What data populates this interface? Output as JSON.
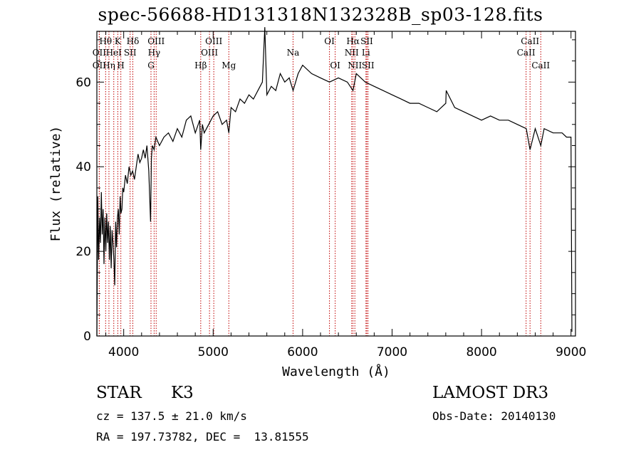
{
  "chart_data": {
    "type": "line",
    "title": "spec-56688-HD131318N132328B_sp03-128.fits",
    "xlabel": "Wavelength (Å)",
    "ylabel": "Flux (relative)",
    "xlim": [
      3700,
      9050
    ],
    "ylim": [
      0,
      72
    ],
    "xticks": [
      4000,
      5000,
      6000,
      7000,
      8000,
      9000
    ],
    "yticks": [
      0,
      20,
      40,
      60
    ],
    "series": [
      {
        "name": "spectrum",
        "x": [
          3700,
          3710,
          3720,
          3730,
          3740,
          3750,
          3760,
          3770,
          3780,
          3790,
          3800,
          3810,
          3820,
          3830,
          3840,
          3850,
          3860,
          3870,
          3880,
          3890,
          3900,
          3910,
          3920,
          3930,
          3940,
          3950,
          3960,
          3970,
          3980,
          3990,
          4000,
          4020,
          4040,
          4060,
          4080,
          4100,
          4120,
          4140,
          4160,
          4180,
          4200,
          4220,
          4240,
          4260,
          4280,
          4300,
          4310,
          4320,
          4340,
          4360,
          4380,
          4400,
          4450,
          4500,
          4550,
          4600,
          4650,
          4700,
          4750,
          4800,
          4850,
          4861,
          4880,
          4900,
          4950,
          5000,
          5050,
          5100,
          5150,
          5175,
          5200,
          5250,
          5300,
          5350,
          5400,
          5450,
          5500,
          5550,
          5577,
          5600,
          5650,
          5700,
          5750,
          5800,
          5850,
          5893,
          5950,
          6000,
          6100,
          6200,
          6300,
          6400,
          6500,
          6563,
          6600,
          6700,
          6800,
          6900,
          7000,
          7100,
          7200,
          7300,
          7400,
          7500,
          7600,
          7605,
          7700,
          7800,
          7900,
          8000,
          8100,
          8200,
          8300,
          8400,
          8500,
          8542,
          8600,
          8662,
          8700,
          8800,
          8900,
          8950,
          9000,
          9010
        ],
        "y": [
          0,
          33,
          18,
          28,
          22,
          34,
          24,
          30,
          17,
          28,
          20,
          29,
          22,
          27,
          18,
          26,
          16,
          25,
          22,
          18,
          12,
          27,
          21,
          28,
          30,
          24,
          33,
          29,
          30,
          35,
          34,
          38,
          36,
          40,
          38,
          39,
          37,
          40,
          43,
          41,
          42,
          44,
          42,
          45,
          39,
          27,
          42,
          45,
          44,
          47,
          46,
          45,
          47,
          48,
          46,
          49,
          47,
          51,
          52,
          48,
          51,
          44,
          50,
          48,
          50,
          52,
          53,
          50,
          51,
          48,
          54,
          53,
          56,
          55,
          57,
          56,
          58,
          60,
          73,
          57,
          59,
          58,
          62,
          60,
          61,
          58,
          62,
          64,
          62,
          61,
          60,
          61,
          60,
          58,
          62,
          60,
          59,
          58,
          57,
          56,
          55,
          55,
          54,
          53,
          55,
          58,
          54,
          53,
          52,
          51,
          52,
          51,
          51,
          50,
          49,
          44,
          49,
          45,
          49,
          48,
          48,
          47,
          47,
          1
        ],
        "color": "#000000"
      }
    ],
    "lines": [
      {
        "label": "OII",
        "wave": 3727,
        "row": 2
      },
      {
        "label": "OII",
        "wave": 3727,
        "row": 3
      },
      {
        "label": "Hθ",
        "wave": 3798,
        "row": 1
      },
      {
        "label": "Hη",
        "wave": 3835,
        "row": 3
      },
      {
        "label": "HeI",
        "wave": 3889,
        "row": 2
      },
      {
        "label": "K",
        "wave": 3934,
        "row": 1
      },
      {
        "label": "H",
        "wave": 3968,
        "row": 3
      },
      {
        "label": "SII",
        "wave": 4072,
        "row": 2
      },
      {
        "label": "Hδ",
        "wave": 4102,
        "row": 1
      },
      {
        "label": "OIII",
        "wave": 4363,
        "row": 1
      },
      {
        "label": "Hγ",
        "wave": 4340,
        "row": 2
      },
      {
        "label": "G",
        "wave": 4305,
        "row": 3
      },
      {
        "label": "Hβ",
        "wave": 4861,
        "row": 3
      },
      {
        "label": "OIII",
        "wave": 4959,
        "row": 2
      },
      {
        "label": "OIII",
        "wave": 5007,
        "row": 1
      },
      {
        "label": "Mg",
        "wave": 5175,
        "row": 3
      },
      {
        "label": "Na",
        "wave": 5893,
        "row": 2
      },
      {
        "label": "OI",
        "wave": 6300,
        "row": 1
      },
      {
        "label": "OI",
        "wave": 6364,
        "row": 3
      },
      {
        "label": "Hα",
        "wave": 6563,
        "row": 1
      },
      {
        "label": "NII",
        "wave": 6548,
        "row": 2
      },
      {
        "label": "NII",
        "wave": 6584,
        "row": 3
      },
      {
        "label": "SII",
        "wave": 6717,
        "row": 1
      },
      {
        "label": "Li",
        "wave": 6708,
        "row": 2
      },
      {
        "label": "SII",
        "wave": 6731,
        "row": 3
      },
      {
        "label": "CaII",
        "wave": 8498,
        "row": 2
      },
      {
        "label": "CaII",
        "wave": 8542,
        "row": 1
      },
      {
        "label": "CaII",
        "wave": 8662,
        "row": 3
      }
    ]
  },
  "info": {
    "class": "STAR",
    "subclass": "K3",
    "survey": "LAMOST DR3",
    "redshift": "cz = 137.5 ± 21.0 km/s",
    "obs_date": "Obs-Date: 20140130",
    "coords": "RA = 197.73782, DEC =  13.81555"
  }
}
